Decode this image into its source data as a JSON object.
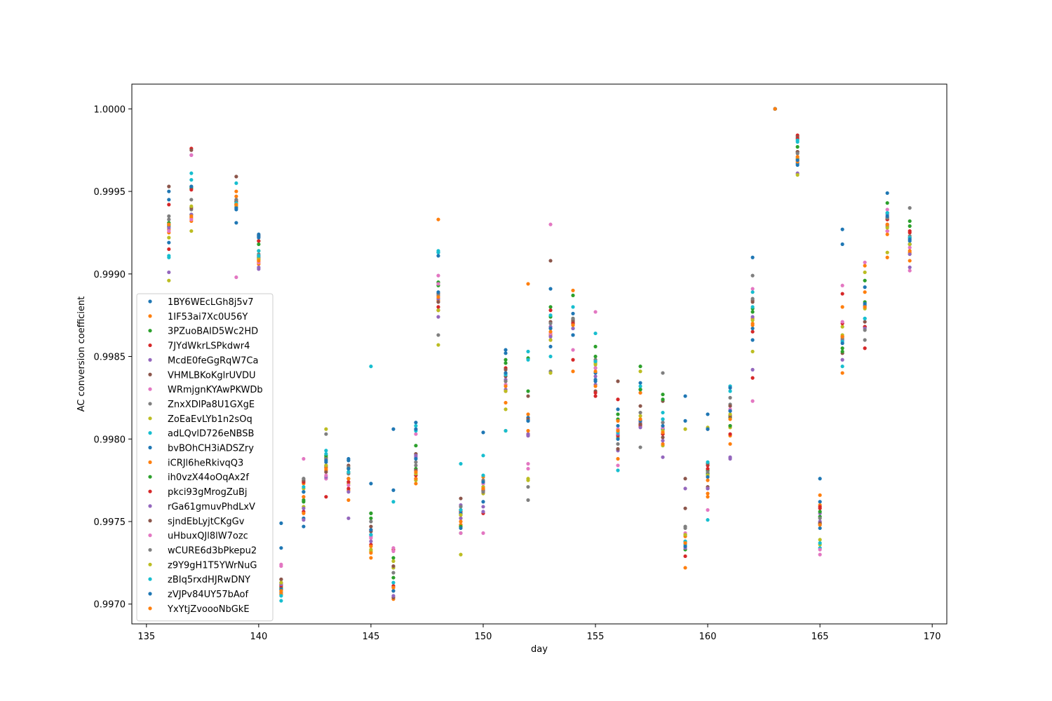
{
  "chart_data": {
    "type": "scatter",
    "title": "",
    "xlabel": "day",
    "ylabel": "AC conversion coefficient",
    "xlim": [
      134.35,
      170.65
    ],
    "ylim": [
      0.99688,
      1.00015
    ],
    "xticks": [
      135,
      140,
      145,
      150,
      155,
      160,
      165,
      170
    ],
    "xtick_labels": [
      "135",
      "140",
      "145",
      "150",
      "155",
      "160",
      "165",
      "170"
    ],
    "yticks": [
      0.997,
      0.9975,
      0.998,
      0.9985,
      0.999,
      0.9995,
      1.0
    ],
    "ytick_labels": [
      "0.9970",
      "0.9975",
      "0.9980",
      "0.9985",
      "0.9990",
      "0.9995",
      "1.0000"
    ],
    "grid": false,
    "legend_position": "center-left",
    "days": [
      136,
      137,
      139,
      140,
      141,
      142,
      143,
      144,
      145,
      146,
      147,
      148,
      149,
      150,
      151,
      152,
      153,
      154,
      155,
      156,
      157,
      158,
      159,
      160,
      161,
      162,
      163,
      164,
      165,
      166,
      167,
      168,
      169
    ],
    "series": [
      {
        "name": "1BY6WEcLGh8j5v7",
        "color": "#1f77b4",
        "values": [
          0.9995,
          0.99952,
          0.99931,
          0.99924,
          0.99749,
          0.99752,
          0.99788,
          0.99788,
          0.99773,
          0.99806,
          0.9981,
          0.99913,
          0.99748,
          0.99762,
          0.99854,
          0.99811,
          0.99891,
          0.99876,
          0.9984,
          0.99818,
          0.99834,
          0.99812,
          0.99826,
          0.99815,
          0.99832,
          0.9991,
          1.0,
          0.99966,
          0.99776,
          0.99927,
          0.99892,
          0.99949,
          0.99918
        ]
      },
      {
        "name": "1IF53ai7Xc0U56Y",
        "color": "#ff7f0e",
        "values": [
          0.99927,
          0.99932,
          0.9995,
          0.99906,
          0.99706,
          0.99773,
          0.99781,
          0.99769,
          0.99728,
          0.99703,
          0.99773,
          0.99933,
          0.99752,
          0.99777,
          0.99805,
          0.99894,
          0.99867,
          0.9989,
          0.99848,
          0.99788,
          0.99809,
          0.99803,
          0.99722,
          0.99765,
          0.99802,
          0.99873,
          1.0,
          0.9997,
          0.99766,
          0.9984,
          0.99905,
          0.9991,
          0.99908
        ]
      },
      {
        "name": "3PZuoBAID5Wc2HD",
        "color": "#2ca02c",
        "values": [
          0.99931,
          0.99952,
          0.99942,
          0.9992,
          0.9971,
          0.99762,
          0.99789,
          0.9978,
          0.99752,
          0.99728,
          0.99796,
          0.99893,
          0.99743,
          0.9977,
          0.99846,
          0.99849,
          0.9988,
          0.99887,
          0.99856,
          0.99812,
          0.99844,
          0.99827,
          0.99738,
          0.99779,
          0.99813,
          0.99879,
          1.0,
          0.99977,
          0.99753,
          0.99855,
          0.99896,
          0.99943,
          0.99932
        ]
      },
      {
        "name": "7JYdWkrLSPkdwr4",
        "color": "#d62728",
        "values": [
          0.99942,
          0.99976,
          0.99942,
          0.99923,
          0.99709,
          0.99756,
          0.99765,
          0.9977,
          0.99736,
          0.99733,
          0.99776,
          0.99878,
          0.99756,
          0.99755,
          0.99843,
          0.99803,
          0.9986,
          0.99848,
          0.99826,
          0.99824,
          0.99808,
          0.99806,
          0.99729,
          0.99784,
          0.99808,
          0.99837,
          1.0,
          0.99984,
          0.99758,
          0.99888,
          0.99855,
          0.99926,
          0.99926
        ]
      },
      {
        "name": "McdE0feGgRqW7Ca",
        "color": "#9467bd",
        "values": [
          0.99901,
          0.99972,
          0.9994,
          0.99904,
          0.99713,
          0.99751,
          0.99776,
          0.99752,
          0.99741,
          0.9971,
          0.99789,
          0.99874,
          0.9976,
          0.99759,
          0.9983,
          0.99803,
          0.99868,
          0.99871,
          0.99833,
          0.99793,
          0.99807,
          0.99789,
          0.9977,
          0.9977,
          0.99788,
          0.99842,
          1.0,
          0.99961,
          0.99755,
          0.99848,
          0.99868,
          0.99936,
          0.99904
        ]
      },
      {
        "name": "VHMLBKoKglrUVDU",
        "color": "#8c564b",
        "values": [
          0.99953,
          0.99975,
          0.99959,
          0.99911,
          0.99715,
          0.99774,
          0.99783,
          0.99784,
          0.99744,
          0.99704,
          0.99791,
          0.99888,
          0.99764,
          0.99773,
          0.99842,
          0.99826,
          0.99908,
          0.99871,
          0.99829,
          0.99835,
          0.9982,
          0.99823,
          0.99776,
          0.99771,
          0.99814,
          0.99884,
          1.0,
          0.99983,
          0.99749,
          0.99852,
          0.99868,
          0.99937,
          0.99922
        ]
      },
      {
        "name": "WRmjgnKYAwPKWDb",
        "color": "#e377c2",
        "values": [
          0.99928,
          0.99972,
          0.99898,
          0.9991,
          0.99724,
          0.99788,
          0.99776,
          0.99774,
          0.9974,
          0.99734,
          0.99803,
          0.99899,
          0.99743,
          0.99743,
          0.99835,
          0.99782,
          0.9993,
          0.99863,
          0.99877,
          0.99784,
          0.99828,
          0.9981,
          0.99737,
          0.9977,
          0.99817,
          0.99891,
          1.0,
          0.99974,
          0.9973,
          0.99893,
          0.99907,
          0.99939,
          0.99902
        ]
      },
      {
        "name": "ZnxXDlPa8U1GXgE",
        "color": "#7f7f7f",
        "values": [
          0.99935,
          0.99939,
          0.99945,
          0.99912,
          0.99707,
          0.99776,
          0.99803,
          0.99783,
          0.99755,
          0.99722,
          0.99784,
          0.99863,
          0.99759,
          0.99775,
          0.9984,
          0.99771,
          0.99841,
          0.9987,
          0.99848,
          0.99801,
          0.99795,
          0.9984,
          0.99746,
          0.99806,
          0.99821,
          0.99899,
          1.0,
          0.9997,
          0.99748,
          0.9986,
          0.9986,
          0.99929,
          0.9994
        ]
      },
      {
        "name": "ZoEaEvLYb1n2sOq",
        "color": "#bcbd22",
        "values": [
          0.99896,
          0.99926,
          0.99942,
          0.99914,
          0.99708,
          0.99759,
          0.99806,
          0.99773,
          0.99732,
          0.99722,
          0.99775,
          0.99857,
          0.9973,
          0.99767,
          0.99818,
          0.99775,
          0.9984,
          0.99872,
          0.99845,
          0.99801,
          0.99841,
          0.99796,
          0.99806,
          0.99807,
          0.99807,
          0.99853,
          1.0,
          0.9996,
          0.99736,
          0.99868,
          0.99901,
          0.99913,
          0.99912
        ]
      },
      {
        "name": "adLQvlD726eNBSB",
        "color": "#17becf",
        "values": [
          0.9991,
          0.99961,
          0.99955,
          0.99914,
          0.99702,
          0.99768,
          0.99793,
          0.99779,
          0.99844,
          0.99762,
          0.99805,
          0.99913,
          0.99785,
          0.9979,
          0.99805,
          0.99853,
          0.9985,
          0.99867,
          0.99864,
          0.99781,
          0.9983,
          0.99816,
          0.99736,
          0.99751,
          0.99832,
          0.99889,
          1.0,
          0.9998,
          0.99734,
          0.99844,
          0.99873,
          0.99937,
          0.99918
        ]
      },
      {
        "name": "bvBOhCH3iADSZry",
        "color": "#1f77b4",
        "values": [
          0.99919,
          0.99953,
          0.99939,
          0.99923,
          0.99734,
          0.99747,
          0.99786,
          0.99787,
          0.99742,
          0.99769,
          0.99806,
          0.99911,
          0.99755,
          0.99804,
          0.99852,
          0.99813,
          0.99856,
          0.99863,
          0.99836,
          0.99808,
          0.9983,
          0.99806,
          0.99811,
          0.99806,
          0.99831,
          0.9986,
          1.0,
          0.99967,
          0.99762,
          0.99918,
          0.99881,
          0.99934,
          0.9992
        ]
      },
      {
        "name": "iCRJl6heRkivqQ3",
        "color": "#ff7f0e",
        "values": [
          0.99925,
          0.99934,
          0.99947,
          0.99907,
          0.99706,
          0.99755,
          0.99788,
          0.99763,
          0.99731,
          0.99708,
          0.99776,
          0.99884,
          0.99748,
          0.99774,
          0.99822,
          0.99815,
          0.99863,
          0.99841,
          0.99832,
          0.99811,
          0.99828,
          0.99797,
          0.99741,
          0.99767,
          0.99797,
          0.9987,
          1.0,
          0.99968,
          0.9976,
          0.9988,
          0.99889,
          0.99924,
          0.99913
        ]
      },
      {
        "name": "ih0vzX44oOqAx2f",
        "color": "#2ca02c",
        "values": [
          0.99929,
          0.99936,
          0.99943,
          0.99918,
          0.99712,
          0.99763,
          0.9979,
          0.99782,
          0.99755,
          0.99716,
          0.99782,
          0.99895,
          0.99747,
          0.99771,
          0.99848,
          0.99829,
          0.99874,
          0.99873,
          0.9985,
          0.99815,
          0.9983,
          0.99824,
          0.99733,
          0.99781,
          0.99808,
          0.99877,
          1.0,
          0.99974,
          0.99756,
          0.99853,
          0.99883,
          0.99933,
          0.99929
        ]
      },
      {
        "name": "pkci93gMrogZuBj",
        "color": "#d62728",
        "values": [
          0.99915,
          0.99951,
          0.99944,
          0.9992,
          0.99711,
          0.99774,
          0.99784,
          0.99774,
          0.99745,
          0.99711,
          0.99778,
          0.9988,
          0.99757,
          0.99768,
          0.99829,
          0.99802,
          0.99878,
          0.9987,
          0.99828,
          0.99802,
          0.99809,
          0.99803,
          0.99742,
          0.99782,
          0.99803,
          0.99865,
          1.0,
          0.99982,
          0.99759,
          0.9987,
          0.99868,
          0.99933,
          0.99925
        ]
      },
      {
        "name": "rGa61gmuvPhdLxV",
        "color": "#9467bd",
        "values": [
          0.99928,
          0.99936,
          0.99941,
          0.99903,
          0.99712,
          0.99758,
          0.99777,
          0.99768,
          0.99738,
          0.99705,
          0.9979,
          0.99885,
          0.99752,
          0.99756,
          0.99836,
          0.99802,
          0.99862,
          0.99867,
          0.99838,
          0.99803,
          0.9981,
          0.99799,
          0.99734,
          0.9977,
          0.99789,
          0.99874,
          1.0,
          0.99969,
          0.9975,
          0.9986,
          0.99867,
          0.9993,
          0.99912
        ]
      },
      {
        "name": "sjndEbLyjtCKgGv",
        "color": "#8c564b",
        "values": [
          0.9993,
          0.9994,
          0.99944,
          0.99909,
          0.99715,
          0.99775,
          0.9978,
          0.99776,
          0.99747,
          0.99723,
          0.99781,
          0.99883,
          0.99754,
          0.99769,
          0.99838,
          0.99812,
          0.99871,
          0.99872,
          0.99843,
          0.99794,
          0.99809,
          0.99801,
          0.99758,
          0.99785,
          0.9982,
          0.99883,
          1.0,
          0.99974,
          0.99749,
          0.99862,
          0.99871,
          0.99934,
          0.99918
        ]
      },
      {
        "name": "uHbuxQJl8lW7ozc",
        "color": "#e377c2",
        "values": [
          0.99926,
          0.99933,
          0.99942,
          0.99907,
          0.99723,
          0.99765,
          0.99778,
          0.99772,
          0.99741,
          0.99732,
          0.9978,
          0.99894,
          0.9975,
          0.99773,
          0.99833,
          0.99785,
          0.99864,
          0.99854,
          0.99843,
          0.99806,
          0.99811,
          0.99807,
          0.99743,
          0.99757,
          0.99818,
          0.99823,
          1.0,
          0.9997,
          0.99733,
          0.99871,
          0.9988,
          0.99926,
          0.99916
        ]
      },
      {
        "name": "wCURE6d3bPkepu2",
        "color": "#7f7f7f",
        "values": [
          0.99933,
          0.99945,
          0.99945,
          0.9991,
          0.99709,
          0.99776,
          0.99788,
          0.99779,
          0.9975,
          0.99719,
          0.99786,
          0.99887,
          0.99757,
          0.99768,
          0.99835,
          0.99763,
          0.9987,
          0.99873,
          0.99847,
          0.99797,
          0.99816,
          0.9981,
          0.99747,
          0.9978,
          0.99825,
          0.99885,
          1.0,
          0.99973,
          0.99752,
          0.99861,
          0.99866,
          0.99934,
          0.99923
        ]
      },
      {
        "name": "z9Y9gH1T5YWrNuG",
        "color": "#bcbd22",
        "values": [
          0.99922,
          0.99941,
          0.99941,
          0.99909,
          0.99713,
          0.9977,
          0.99784,
          0.99776,
          0.99733,
          0.99726,
          0.99779,
          0.99878,
          0.99754,
          0.99771,
          0.99829,
          0.99776,
          0.9986,
          0.99869,
          0.99846,
          0.99805,
          0.99814,
          0.99805,
          0.99742,
          0.99778,
          0.99815,
          0.99872,
          1.0,
          0.9997,
          0.99739,
          0.99863,
          0.99879,
          0.99928,
          0.99918
        ]
      },
      {
        "name": "zBIq5rxdHJRwDNY",
        "color": "#17becf",
        "values": [
          0.99911,
          0.99957,
          0.99943,
          0.99911,
          0.99705,
          0.99771,
          0.99791,
          0.9978,
          0.99742,
          0.99713,
          0.99808,
          0.99914,
          0.99757,
          0.99778,
          0.99839,
          0.99848,
          0.99875,
          0.9988,
          0.99847,
          0.99804,
          0.99832,
          0.99812,
          0.99738,
          0.99786,
          0.99829,
          0.9988,
          1.0,
          0.99981,
          0.99737,
          0.99859,
          0.99873,
          0.99937,
          0.99922
        ]
      },
      {
        "name": "zVJPv84UY57bAof",
        "color": "#1f77b4",
        "values": [
          0.99945,
          0.99953,
          0.9994,
          0.99922,
          0.99709,
          0.99768,
          0.99787,
          0.99782,
          0.99745,
          0.99708,
          0.99788,
          0.99889,
          0.99746,
          0.99774,
          0.9984,
          0.99811,
          0.99867,
          0.99863,
          0.99835,
          0.998,
          0.99811,
          0.99808,
          0.99735,
          0.99777,
          0.99817,
          0.99867,
          1.0,
          0.99969,
          0.99746,
          0.99858,
          0.99882,
          0.99935,
          0.99921
        ]
      },
      {
        "name": "YxYtjZvoooNbGkE",
        "color": "#ff7f0e",
        "values": [
          0.9993,
          0.99935,
          0.99942,
          0.99908,
          0.99708,
          0.99765,
          0.99782,
          0.99776,
          0.99735,
          0.9971,
          0.9978,
          0.99886,
          0.9975,
          0.9977,
          0.99832,
          0.99805,
          0.99865,
          0.99869,
          0.99841,
          0.99805,
          0.99812,
          0.99804,
          0.99737,
          0.99775,
          0.99812,
          0.99869,
          1.0,
          0.99971,
          0.99748,
          0.99862,
          0.9988,
          0.9993,
          0.99914
        ]
      }
    ]
  }
}
